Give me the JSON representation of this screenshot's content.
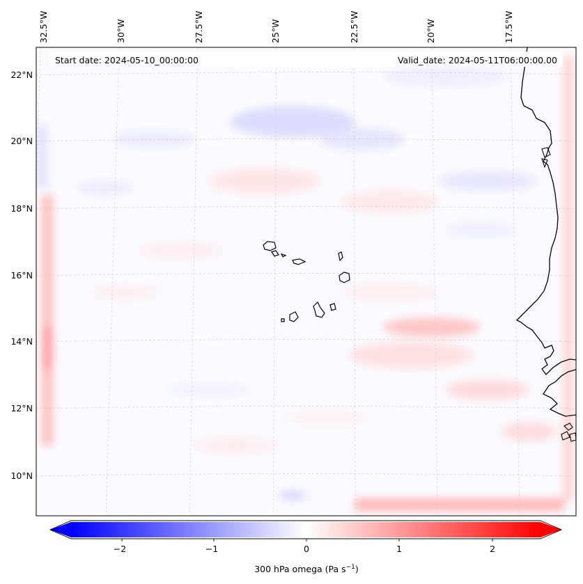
{
  "header": {
    "start_date": "Start date: 2024-05-10_00:00:00",
    "valid_date": "Valid_date: 2024-05-11T06:00:00.00"
  },
  "longitude_labels": [
    "32.5°W",
    "30°W",
    "27.5°W",
    "25°W",
    "22.5°W",
    "20°W",
    "17.5°W"
  ],
  "latitude_labels": [
    "22°N",
    "20°N",
    "18°N",
    "16°N",
    "14°N",
    "12°N",
    "10°N"
  ],
  "colorbar": {
    "label": "300 hPa omega (Pa s",
    "label_exponent": "−1",
    "label_close": ")",
    "ticks": [
      "−2",
      "−1",
      "0",
      "1",
      "2"
    ],
    "range": [
      -2.6,
      2.6
    ],
    "negative_color": "#0000ff",
    "positive_color": "#ff0000",
    "center_color": "#ffffff"
  },
  "colors": {
    "coastline": "#000000",
    "gridline": "#c8c8c8"
  }
}
